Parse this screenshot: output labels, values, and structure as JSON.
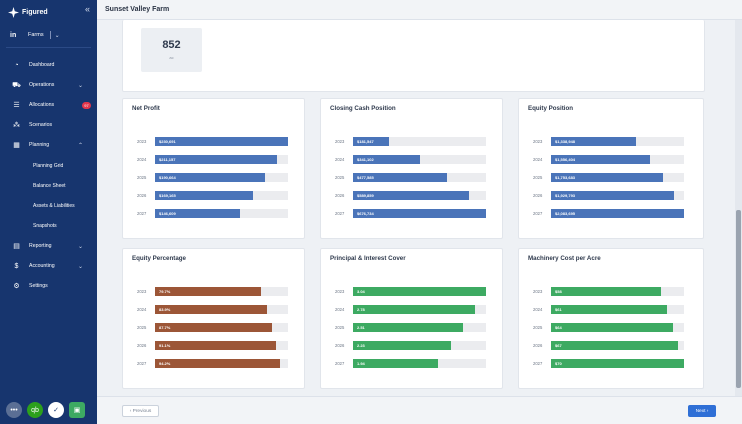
{
  "app": {
    "name": "Figured",
    "page_title": "Sunset Valley Farm"
  },
  "sidebar": {
    "farms_label": "Farms",
    "items": [
      {
        "key": "dashboard",
        "label": "Dashboard",
        "icon": "speedometer-icon"
      },
      {
        "key": "operations",
        "label": "Operations",
        "icon": "tractor-icon",
        "chevron": "down"
      },
      {
        "key": "allocations",
        "label": "Allocations",
        "icon": "list-icon",
        "badge": "97"
      },
      {
        "key": "scenarios",
        "label": "Scenarios",
        "icon": "nodes-icon"
      },
      {
        "key": "planning",
        "label": "Planning",
        "icon": "table-icon",
        "chevron": "up"
      },
      {
        "key": "reporting",
        "label": "Reporting",
        "icon": "report-icon",
        "chevron": "down"
      },
      {
        "key": "accounting",
        "label": "Accounting",
        "icon": "dollar-icon",
        "chevron": "down"
      },
      {
        "key": "settings",
        "label": "Settings",
        "icon": "gear-icon"
      }
    ],
    "planning_sub": [
      "Planning Grid",
      "Balance Sheet",
      "Assets & Liabilities",
      "Snapshots"
    ],
    "bottom_apps": [
      "more-icon",
      "quickbooks-icon",
      "xero-icon",
      "green-app-icon"
    ]
  },
  "stat": {
    "value": "852",
    "unit": "ac"
  },
  "colors": {
    "blue": "#4a74b9",
    "brown": "#9c5637",
    "green": "#3daa62"
  },
  "charts": [
    {
      "key": "net-profit",
      "title": "Net Profit",
      "color": "blue",
      "max": 230691,
      "rows": [
        {
          "year": "2023",
          "label": "$230,691",
          "value": 230691
        },
        {
          "year": "2024",
          "label": "$211,157",
          "value": 211157
        },
        {
          "year": "2025",
          "label": "$190,664",
          "value": 190664
        },
        {
          "year": "2026",
          "label": "$169,165",
          "value": 169165
        },
        {
          "year": "2027",
          "label": "$146,609",
          "value": 146609
        }
      ]
    },
    {
      "key": "closing-cash",
      "title": "Closing Cash Position",
      "color": "blue",
      "max": 676734,
      "rows": [
        {
          "year": "2023",
          "label": "$181,547",
          "value": 181547
        },
        {
          "year": "2024",
          "label": "$341,102",
          "value": 341102
        },
        {
          "year": "2025",
          "label": "$477,585",
          "value": 477585
        },
        {
          "year": "2026",
          "label": "$589,859",
          "value": 589859
        },
        {
          "year": "2027",
          "label": "$676,734",
          "value": 676734
        }
      ]
    },
    {
      "key": "equity-position",
      "title": "Equity Position",
      "color": "blue",
      "max": 2083695,
      "rows": [
        {
          "year": "2023",
          "label": "$1,338,948",
          "value": 1338948
        },
        {
          "year": "2024",
          "label": "$1,556,404",
          "value": 1556404
        },
        {
          "year": "2025",
          "label": "$1,753,683",
          "value": 1753683
        },
        {
          "year": "2026",
          "label": "$1,929,793",
          "value": 1929793
        },
        {
          "year": "2027",
          "label": "$2,083,695",
          "value": 2083695
        }
      ]
    },
    {
      "key": "equity-percentage",
      "title": "Equity Percentage",
      "color": "brown",
      "max": 100,
      "rows": [
        {
          "year": "2023",
          "label": "79.7%",
          "value": 79.7
        },
        {
          "year": "2024",
          "label": "83.9%",
          "value": 83.9
        },
        {
          "year": "2025",
          "label": "87.7%",
          "value": 87.7
        },
        {
          "year": "2026",
          "label": "91.1%",
          "value": 91.1
        },
        {
          "year": "2027",
          "label": "94.2%",
          "value": 94.2
        }
      ]
    },
    {
      "key": "principal-interest",
      "title": "Principal & Interest Cover",
      "color": "green",
      "max": 3.04,
      "rows": [
        {
          "year": "2023",
          "label": "3.04",
          "value": 3.04
        },
        {
          "year": "2024",
          "label": "2.78",
          "value": 2.78
        },
        {
          "year": "2025",
          "label": "2.51",
          "value": 2.51
        },
        {
          "year": "2026",
          "label": "2.23",
          "value": 2.23
        },
        {
          "year": "2027",
          "label": "1.94",
          "value": 1.94
        }
      ]
    },
    {
      "key": "machinery-cost",
      "title": "Machinery Cost per Acre",
      "color": "green",
      "max": 70,
      "rows": [
        {
          "year": "2023",
          "label": "$58",
          "value": 58
        },
        {
          "year": "2024",
          "label": "$61",
          "value": 61
        },
        {
          "year": "2025",
          "label": "$64",
          "value": 64
        },
        {
          "year": "2026",
          "label": "$67",
          "value": 67
        },
        {
          "year": "2027",
          "label": "$70",
          "value": 70
        }
      ]
    }
  ],
  "footer": {
    "prev_label": "Previous",
    "next_label": "Next"
  }
}
